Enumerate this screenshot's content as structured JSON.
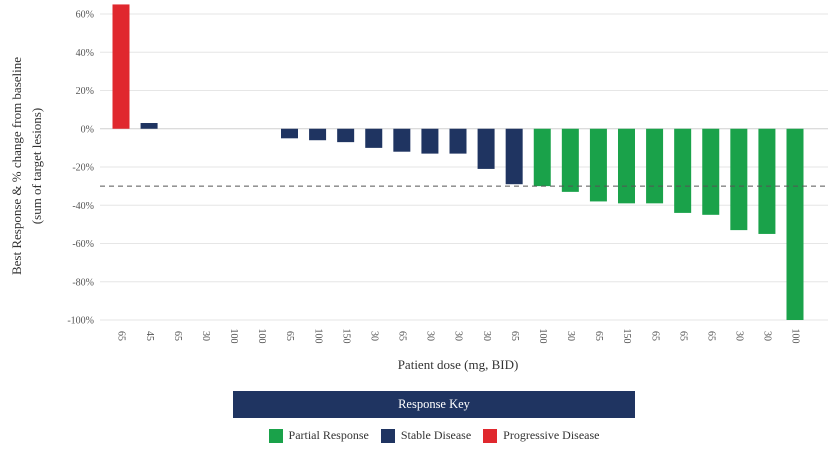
{
  "chart_data": {
    "type": "bar",
    "title": "",
    "ylabel_line1": "Best Response & % change from baseline",
    "ylabel_line2": "(sum of target lesions)",
    "xlabel": "Patient dose (mg, BID)",
    "ylim": [
      -100,
      60
    ],
    "yticks": [
      60,
      40,
      20,
      0,
      -20,
      -40,
      -60,
      -80,
      -100
    ],
    "ytick_format": "percent",
    "threshold": -30,
    "grid": true,
    "categories": [
      "65",
      "45",
      "65",
      "30",
      "100",
      "100",
      "65",
      "100",
      "150",
      "30",
      "65",
      "30",
      "30",
      "30",
      "65",
      "100",
      "30",
      "65",
      "150",
      "65",
      "65",
      "65",
      "30",
      "30",
      "100"
    ],
    "values": [
      65,
      3,
      0,
      0,
      0,
      0,
      -5,
      -6,
      -7,
      -10,
      -12,
      -13,
      -13,
      -21,
      -29,
      -30,
      -33,
      -38,
      -39,
      -39,
      -44,
      -45,
      -53,
      -55,
      -100
    ],
    "status": [
      "progressive",
      "stable",
      "stable",
      "stable",
      "stable",
      "stable",
      "stable",
      "stable",
      "stable",
      "stable",
      "stable",
      "stable",
      "stable",
      "stable",
      "stable",
      "partial",
      "partial",
      "partial",
      "partial",
      "partial",
      "partial",
      "partial",
      "partial",
      "partial",
      "partial"
    ],
    "colors": {
      "partial": "#1aa24a",
      "stable": "#1f3461",
      "progressive": "#e0282e"
    },
    "legend": {
      "header": "Response Key",
      "items": [
        {
          "key": "partial",
          "label": "Partial Response"
        },
        {
          "key": "stable",
          "label": "Stable Disease"
        },
        {
          "key": "progressive",
          "label": "Progressive Disease"
        }
      ]
    }
  }
}
